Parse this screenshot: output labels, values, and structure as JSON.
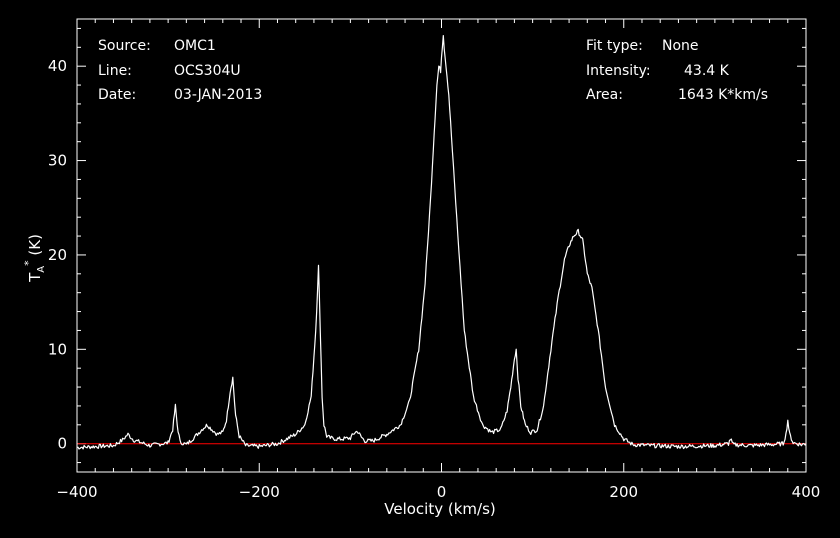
{
  "info_left": {
    "source_label": "Source:",
    "source_value": "OMC1",
    "line_label": "Line:",
    "line_value": "OCS304U",
    "date_label": "Date:",
    "date_value": "03-JAN-2013"
  },
  "info_right": {
    "fit_label": "Fit type:",
    "fit_value": "None",
    "intensity_label": "Intensity:",
    "intensity_value": "43.4 K",
    "area_label": "Area:",
    "area_value": "1643 K*km/s"
  },
  "colors": {
    "background": "#000000",
    "trace": "#ffffff",
    "baseline": "#ff0000",
    "axes": "#ffffff"
  },
  "chart_data": {
    "type": "line",
    "xlabel": "Velocity (km/s)",
    "ylabel": "T_A^* (K)",
    "xlim": [
      -400,
      400
    ],
    "ylim": [
      -3,
      45
    ],
    "x_ticks": [
      -400,
      -200,
      0,
      200,
      400
    ],
    "y_ticks": [
      0,
      10,
      20,
      30,
      40
    ],
    "baseline_y": 0,
    "series": [
      {
        "x": [
          -400,
          -380,
          -360,
          -350,
          -344,
          -338,
          -320,
          -300,
          -295,
          -292,
          -290,
          -287,
          -280,
          -270,
          -262,
          -257,
          -252,
          -246,
          -240,
          -236,
          -232,
          -229,
          -226,
          -222,
          -215,
          -200,
          -180,
          -170,
          -160,
          -150,
          -143,
          -138,
          -135,
          -133,
          -131,
          -129,
          -126,
          -122,
          -115,
          -110,
          -100,
          -95,
          -92,
          -88,
          -84,
          -75,
          -60,
          -45,
          -35,
          -25,
          -18,
          -12,
          -8,
          -5,
          -3,
          -1,
          0,
          2,
          3,
          5,
          8,
          12,
          18,
          25,
          35,
          45,
          55,
          65,
          72,
          76,
          80,
          82,
          84,
          87,
          92,
          98,
          105,
          112,
          120,
          128,
          135,
          140,
          145,
          150,
          155,
          160,
          165,
          172,
          180,
          190,
          200,
          210,
          230,
          260,
          300,
          315,
          317,
          320,
          340,
          360,
          375,
          378,
          380,
          382,
          386,
          395,
          400
        ],
        "y": [
          -0.4,
          -0.3,
          -0.2,
          0.4,
          1.0,
          0.4,
          -0.2,
          0.1,
          1.5,
          4.0,
          2.0,
          0.2,
          -0.1,
          0.8,
          1.6,
          2.0,
          1.5,
          1.0,
          1.2,
          2.5,
          5.5,
          7.0,
          3.0,
          0.8,
          -0.2,
          -0.3,
          0.0,
          0.5,
          1.0,
          2.0,
          5.0,
          12.0,
          18.8,
          12.0,
          5.0,
          2.0,
          0.8,
          0.6,
          0.5,
          0.5,
          0.6,
          1.2,
          1.3,
          0.7,
          0.3,
          0.3,
          1.0,
          2.0,
          4.5,
          10.0,
          17.0,
          26.0,
          33.0,
          38.0,
          40.0,
          39.5,
          41.0,
          43.4,
          42.0,
          40.0,
          37.0,
          31.0,
          22.0,
          12.0,
          5.0,
          2.0,
          1.2,
          1.5,
          3.5,
          6.0,
          9.0,
          10.0,
          7.0,
          4.0,
          2.0,
          1.2,
          1.5,
          4.0,
          10.0,
          15.5,
          19.5,
          21.0,
          22.0,
          22.5,
          21.5,
          18.0,
          16.5,
          12.0,
          6.0,
          2.0,
          0.5,
          -0.1,
          -0.2,
          -0.3,
          -0.2,
          0.0,
          0.5,
          -0.1,
          -0.2,
          -0.1,
          0.0,
          1.0,
          2.5,
          1.0,
          0.1,
          -0.1,
          0.0
        ]
      }
    ]
  }
}
